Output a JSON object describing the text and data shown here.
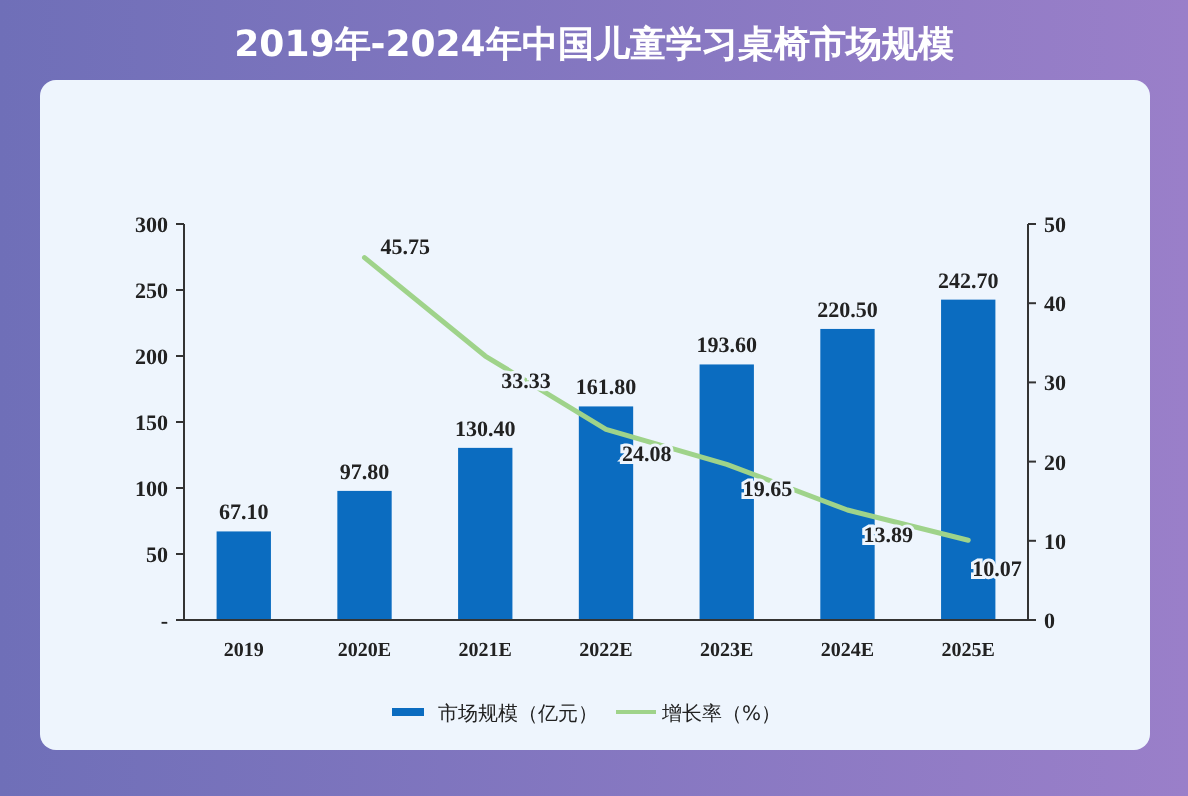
{
  "chart_data": {
    "type": "bar",
    "title": "2019年-2024年中国儿童学习桌椅市场规模",
    "categories": [
      "2019",
      "2020E",
      "2021E",
      "2022E",
      "2023E",
      "2024E",
      "2025E"
    ],
    "series": [
      {
        "name": "市场规模（亿元）",
        "color": "#0b6cc0",
        "values": [
          67.1,
          97.8,
          130.4,
          161.8,
          193.6,
          220.5,
          242.7
        ],
        "value_labels": [
          "67.10",
          "97.80",
          "130.40",
          "161.80",
          "193.60",
          "220.50",
          "242.70"
        ]
      },
      {
        "name": "增长率（%）",
        "type": "line",
        "axis": "y2",
        "color": "#9fd38a",
        "values": [
          null,
          45.75,
          33.33,
          24.08,
          19.65,
          13.89,
          10.07
        ],
        "value_labels": [
          null,
          "45.75",
          "33.33",
          "24.08",
          "19.65",
          "13.89",
          "10.07"
        ]
      }
    ],
    "ylim": [
      0,
      300
    ],
    "yticks": [
      {
        "value": 0,
        "label": "-"
      },
      50,
      100,
      150,
      200,
      250,
      300
    ],
    "y2lim": [
      0,
      50
    ],
    "y2ticks": [
      0,
      10,
      20,
      30,
      40,
      50
    ],
    "legend": "bottom",
    "grid": false,
    "marker": "none"
  }
}
